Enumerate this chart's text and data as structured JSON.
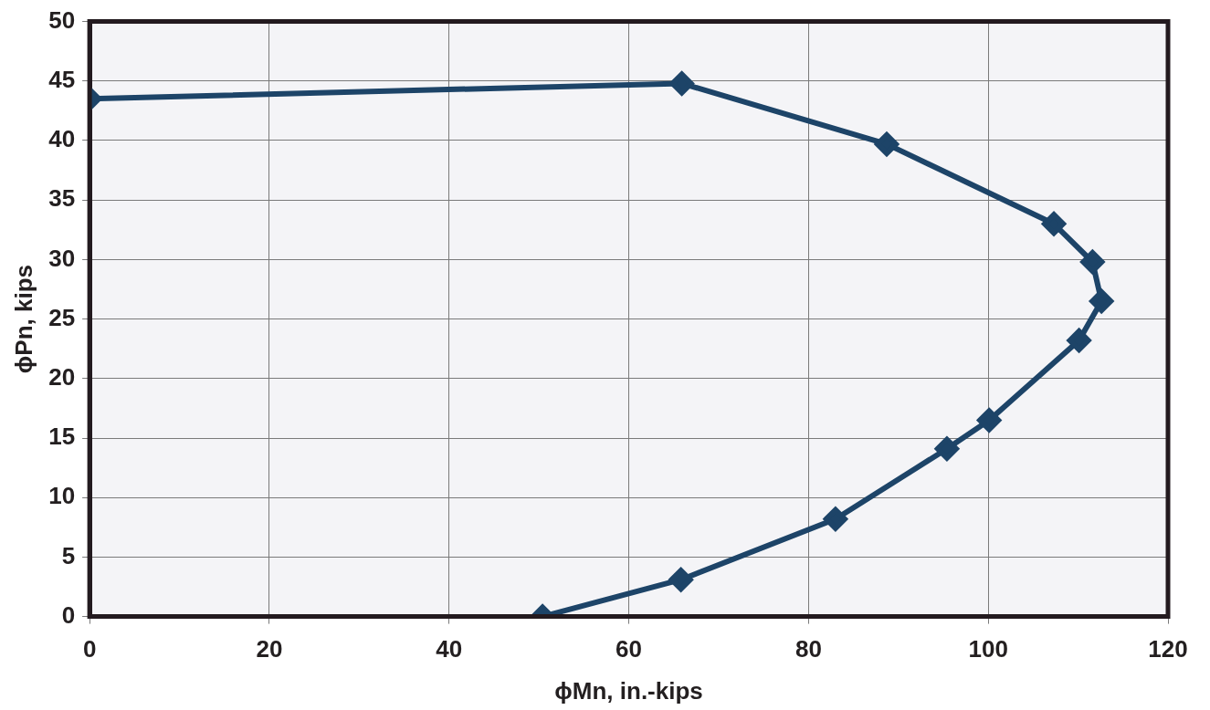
{
  "chart_data": {
    "type": "line",
    "xlabel": "ϕMn, in.-kips",
    "ylabel": "ϕPn, kips",
    "series": [
      {
        "color": "#1d4468",
        "x": [
          0,
          65.9,
          88.7,
          107.3,
          111.6,
          112.6,
          110.1,
          100.1,
          95.4,
          83.0,
          65.8,
          50.4
        ],
        "values": [
          43.5,
          44.8,
          39.7,
          33.0,
          29.8,
          26.5,
          23.2,
          16.5,
          14.1,
          8.2,
          3.1,
          0
        ]
      }
    ],
    "xlim": [
      0,
      120
    ],
    "xticks": [
      0,
      20,
      40,
      60,
      80,
      100,
      120
    ],
    "ylim": [
      0,
      50
    ],
    "yticks": [
      0,
      5,
      10,
      15,
      20,
      25,
      30,
      35,
      40,
      45,
      50
    ],
    "grid": true,
    "marker": "diamond",
    "legend": false
  }
}
